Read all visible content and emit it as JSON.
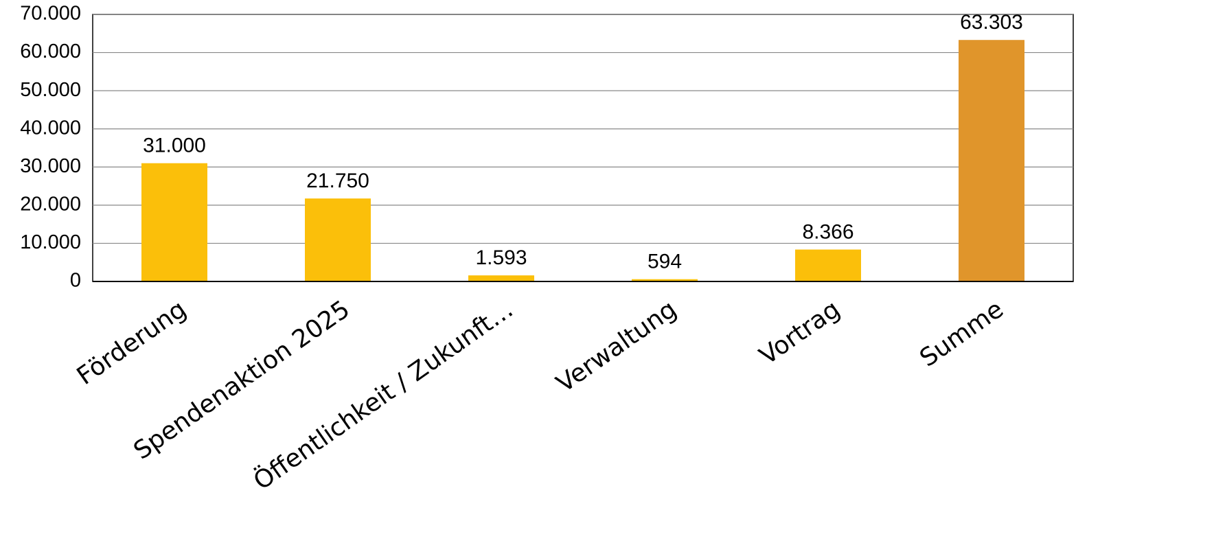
{
  "chart_data": {
    "type": "bar",
    "categories": [
      "Förderung",
      "Spendenaktion 2025",
      "Öffentlichkeit / Zukunft…",
      "Verwaltung",
      "Vortrag",
      "Summe"
    ],
    "values": [
      31000,
      21750,
      1593,
      594,
      8366,
      63303
    ],
    "value_labels": [
      "31.000",
      "21.750",
      "1.593",
      "594",
      "8.366",
      "63.303"
    ],
    "colors": [
      "#fbbf0a",
      "#fbbf0a",
      "#fbbf0a",
      "#fbbf0a",
      "#fbbf0a",
      "#e0952b"
    ],
    "ylim": [
      0,
      70000
    ],
    "yticks": [
      0,
      {
        "value": 10000,
        "label": "10.000"
      },
      {
        "value": 20000,
        "label": "20.000"
      },
      {
        "value": 30000,
        "label": "30.000"
      },
      {
        "value": 40000,
        "label": "40.000"
      },
      {
        "value": 50000,
        "label": "50.000"
      },
      {
        "value": 60000,
        "label": "60.000"
      },
      {
        "value": 70000,
        "label": "70.000"
      }
    ],
    "grid": true
  }
}
